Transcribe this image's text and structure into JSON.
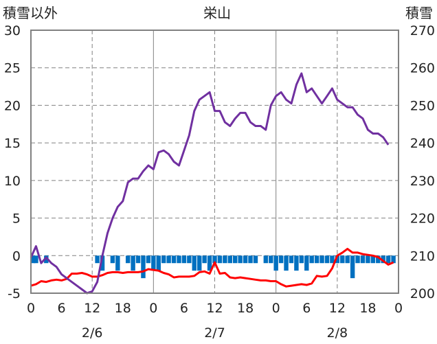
{
  "chart_data": {
    "type": "line",
    "title": "栄山",
    "left_axis_label": "積雪以外",
    "right_axis_label": "積雪",
    "left_ylim": [
      -5,
      30
    ],
    "left_ticks": [
      -5,
      0,
      5,
      10,
      15,
      20,
      25,
      30
    ],
    "right_ylim": [
      200,
      270
    ],
    "right_ticks": [
      200,
      210,
      220,
      230,
      240,
      250,
      260,
      270
    ],
    "hour_ticks": [
      "0",
      "6",
      "12",
      "18",
      "0",
      "6",
      "12",
      "18",
      "0",
      "6",
      "12",
      "18",
      "0"
    ],
    "day_labels": [
      "2/6",
      "2/7",
      "2/8"
    ],
    "grid": true,
    "colors": {
      "snow_depth": "#7030a0",
      "temperature": "#ff0000",
      "bars": "#0070c0",
      "frame": "#808080",
      "grid": "#808080"
    },
    "series": [
      {
        "key": "snow_depth",
        "axis": "right",
        "values": [
          [
            0,
            209.5
          ],
          [
            1,
            212.5
          ],
          [
            2,
            208
          ],
          [
            3,
            209.5
          ],
          [
            4,
            208
          ],
          [
            5,
            207
          ],
          [
            6,
            205
          ],
          [
            7,
            204
          ],
          [
            8,
            203
          ],
          [
            9,
            202
          ],
          [
            10,
            201
          ],
          [
            11,
            200
          ],
          [
            12,
            200.5
          ],
          [
            13,
            203
          ],
          [
            14,
            210
          ],
          [
            15,
            216
          ],
          [
            16,
            220
          ],
          [
            17,
            223
          ],
          [
            18,
            224.5
          ],
          [
            19,
            229.5
          ],
          [
            20,
            230.5
          ],
          [
            21,
            230.5
          ],
          [
            22,
            232.5
          ],
          [
            23,
            234
          ],
          [
            24,
            233
          ],
          [
            25,
            237.5
          ],
          [
            26,
            238
          ],
          [
            27,
            237
          ],
          [
            28,
            235
          ],
          [
            29,
            234
          ],
          [
            30,
            238
          ],
          [
            31,
            242
          ],
          [
            32,
            248.5
          ],
          [
            33,
            251.5
          ],
          [
            34,
            252.5
          ],
          [
            35,
            253.5
          ],
          [
            36,
            248.5
          ],
          [
            37,
            248.5
          ],
          [
            38,
            245.5
          ],
          [
            39,
            244.5
          ],
          [
            40,
            246.5
          ],
          [
            41,
            248
          ],
          [
            42,
            248
          ],
          [
            43,
            245.5
          ],
          [
            44,
            244.5
          ],
          [
            45,
            244.5
          ],
          [
            46,
            243.5
          ],
          [
            47,
            250
          ],
          [
            48,
            252.5
          ],
          [
            49,
            253.5
          ],
          [
            50,
            251.5
          ],
          [
            51,
            250.5
          ],
          [
            52,
            255.5
          ],
          [
            53,
            258.5
          ],
          [
            54,
            253.5
          ],
          [
            55,
            254.5
          ],
          [
            56,
            252.5
          ],
          [
            57,
            250.5
          ],
          [
            58,
            252.5
          ],
          [
            59,
            254.5
          ],
          [
            60,
            251.5
          ],
          [
            61,
            250.5
          ],
          [
            62,
            249.5
          ],
          [
            63,
            249.5
          ],
          [
            64,
            247.5
          ],
          [
            65,
            246.5
          ],
          [
            66,
            243.5
          ],
          [
            67,
            242.5
          ],
          [
            68,
            242.5
          ],
          [
            69,
            241.5
          ],
          [
            70,
            239.5
          ]
        ]
      },
      {
        "key": "temperature",
        "axis": "left",
        "values": [
          [
            0,
            -4
          ],
          [
            1,
            -3.8
          ],
          [
            2,
            -3.4
          ],
          [
            3,
            -3.5
          ],
          [
            4,
            -3.3
          ],
          [
            5,
            -3.2
          ],
          [
            6,
            -3.3
          ],
          [
            7,
            -3.1
          ],
          [
            8,
            -2.4
          ],
          [
            9,
            -2.4
          ],
          [
            10,
            -2.3
          ],
          [
            11,
            -2.5
          ],
          [
            12,
            -2.8
          ],
          [
            13,
            -2.8
          ],
          [
            14,
            -2.6
          ],
          [
            15,
            -2.3
          ],
          [
            16,
            -2.2
          ],
          [
            17,
            -2.2
          ],
          [
            18,
            -2.3
          ],
          [
            19,
            -2.2
          ],
          [
            20,
            -2.2
          ],
          [
            21,
            -2.2
          ],
          [
            22,
            -2.1
          ],
          [
            23,
            -1.8
          ],
          [
            24,
            -1.9
          ],
          [
            25,
            -2
          ],
          [
            26,
            -2.3
          ],
          [
            27,
            -2.5
          ],
          [
            28,
            -2.9
          ],
          [
            29,
            -2.8
          ],
          [
            30,
            -2.8
          ],
          [
            31,
            -2.8
          ],
          [
            32,
            -2.7
          ],
          [
            33,
            -2.2
          ],
          [
            34,
            -2.1
          ],
          [
            35,
            -2.4
          ],
          [
            36,
            -0.9
          ],
          [
            37,
            -2.4
          ],
          [
            38,
            -2.3
          ],
          [
            39,
            -2.9
          ],
          [
            40,
            -3
          ],
          [
            41,
            -2.9
          ],
          [
            42,
            -3
          ],
          [
            43,
            -3.1
          ],
          [
            44,
            -3.2
          ],
          [
            45,
            -3.3
          ],
          [
            46,
            -3.3
          ],
          [
            47,
            -3.4
          ],
          [
            48,
            -3.4
          ],
          [
            49,
            -3.8
          ],
          [
            50,
            -4.1
          ],
          [
            51,
            -4
          ],
          [
            52,
            -3.9
          ],
          [
            53,
            -3.8
          ],
          [
            54,
            -3.9
          ],
          [
            55,
            -3.7
          ],
          [
            56,
            -2.7
          ],
          [
            57,
            -2.8
          ],
          [
            58,
            -2.7
          ],
          [
            59,
            -1.7
          ],
          [
            60,
            0
          ],
          [
            61,
            0.4
          ],
          [
            62,
            0.9
          ],
          [
            63,
            0.4
          ],
          [
            64,
            0.4
          ],
          [
            65,
            0.2
          ],
          [
            66,
            0.1
          ],
          [
            67,
            0
          ],
          [
            68,
            -0.2
          ],
          [
            69,
            -0.7
          ],
          [
            70,
            -1.2
          ],
          [
            71,
            -0.9
          ]
        ]
      },
      {
        "key": "bars",
        "axis": "left",
        "values": [
          [
            0,
            -1
          ],
          [
            1,
            -1
          ],
          [
            3,
            -1
          ],
          [
            13,
            -1
          ],
          [
            14,
            -2
          ],
          [
            16,
            -1
          ],
          [
            17,
            -2
          ],
          [
            19,
            -1
          ],
          [
            20,
            -2
          ],
          [
            21,
            -1
          ],
          [
            22,
            -3
          ],
          [
            23,
            -1
          ],
          [
            24,
            -2
          ],
          [
            25,
            -2
          ],
          [
            26,
            -1
          ],
          [
            27,
            -1
          ],
          [
            28,
            -1
          ],
          [
            29,
            -1
          ],
          [
            30,
            -1
          ],
          [
            31,
            -1
          ],
          [
            32,
            -2
          ],
          [
            33,
            -2
          ],
          [
            34,
            -1
          ],
          [
            35,
            -2
          ],
          [
            36,
            -1
          ],
          [
            37,
            -1
          ],
          [
            38,
            -1
          ],
          [
            39,
            -1
          ],
          [
            40,
            -1
          ],
          [
            41,
            -1
          ],
          [
            42,
            -1
          ],
          [
            43,
            -1
          ],
          [
            44,
            -1
          ],
          [
            46,
            -1
          ],
          [
            47,
            -1
          ],
          [
            48,
            -2
          ],
          [
            49,
            -1
          ],
          [
            50,
            -2
          ],
          [
            51,
            -1
          ],
          [
            52,
            -2
          ],
          [
            53,
            -1
          ],
          [
            54,
            -2
          ],
          [
            55,
            -1
          ],
          [
            56,
            -1
          ],
          [
            57,
            -1
          ],
          [
            58,
            -1
          ],
          [
            59,
            -1
          ],
          [
            60,
            -1
          ],
          [
            61,
            -1
          ],
          [
            62,
            -1
          ],
          [
            63,
            -3
          ],
          [
            64,
            -1
          ],
          [
            65,
            -1
          ],
          [
            66,
            -1
          ],
          [
            67,
            -1
          ],
          [
            68,
            -1
          ],
          [
            69,
            -1
          ],
          [
            70,
            -1
          ],
          [
            71,
            -1
          ]
        ]
      }
    ]
  }
}
